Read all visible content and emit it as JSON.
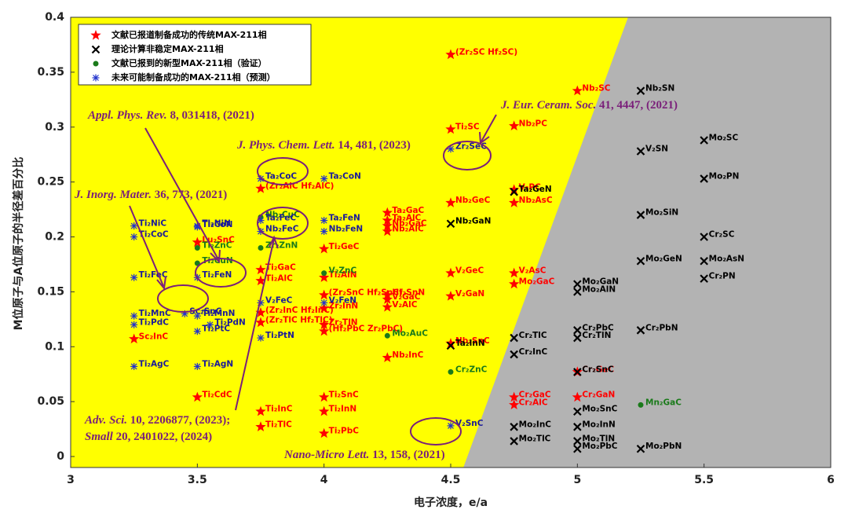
{
  "chart_data": {
    "type": "scatter",
    "xlabel": "电子浓度，e/a",
    "ylabel": "M位原子与A位原子的半径差百分比",
    "xlim": [
      3,
      6
    ],
    "xticks": [
      3,
      3.5,
      4,
      4.5,
      5,
      5.5,
      6
    ],
    "ylim": [
      -0.01,
      0.4
    ],
    "yticks": [
      0,
      0.05,
      0.1,
      0.15,
      0.2,
      0.25,
      0.3,
      0.35,
      0.4
    ],
    "stable_region_color": "#ffff00",
    "unstable_region_color": "#b3b3b3",
    "boundary": [
      [
        4.55,
        -0.01
      ],
      [
        5.2,
        0.4
      ]
    ],
    "series": [
      {
        "name": "文献已报道制备成功的传统MAX-211相",
        "marker": "star",
        "color": "#ff0000",
        "labels": [
          "(Zr₂SC Hf₂SC)",
          "Nb₂SC",
          "Ti₂SC",
          "Nb₂PC",
          "V₂PC",
          "Nb₂GeC",
          "Nb₂AsC",
          "Ta₂GaC",
          "Ta₂AlC",
          "Nb₂GaC",
          "Nb₂AlC",
          "Ti₂GeC",
          "(Zr₂AlC Hf₂AlC)",
          "Lu₂SnC",
          "Ti₂GaC",
          "Ti₂AlN",
          "V₂GeC",
          "V₂AsC",
          "Mo₂GaC",
          "Ti₂AlC",
          "(Zr₂SnC Hf₂SnC)",
          "Hf₂SnN",
          "V₂GaC",
          "V₂GaN",
          "V₂AlC",
          "Zr₂InN",
          "(Zr₂InC Hf₂InC)",
          "Zr₂TlN",
          "(Zr₂TlC Hf₂TlC)",
          "(Hf₂PbC Zr₂PbC)",
          "Nb₂SnC",
          "Sc₂InC",
          "Nb₂InC",
          "Cr₂GeC",
          "Ti₂CdC",
          "Ti₂SnC",
          "Cr₂GaC",
          "Cr₂GaN",
          "Cr₂AlC",
          "Ti₂InC",
          "Ti₂InN",
          "Ti₂TlC",
          "Ti₂PbC"
        ],
        "x": [
          4.5,
          5,
          4.5,
          4.75,
          4.75,
          4.5,
          4.75,
          4.25,
          4.25,
          4.25,
          4.25,
          4,
          3.75,
          3.5,
          3.75,
          4,
          4.5,
          4.75,
          4.75,
          3.75,
          4,
          4.25,
          4.25,
          4.5,
          4.25,
          4,
          3.75,
          4,
          3.75,
          4,
          4.5,
          3.25,
          4.25,
          5,
          3.5,
          4,
          4.75,
          5,
          4.75,
          3.75,
          4,
          3.75,
          4
        ],
        "values": [
          0.366,
          0.333,
          0.298,
          0.301,
          0.243,
          0.231,
          0.231,
          0.222,
          0.215,
          0.21,
          0.205,
          0.189,
          0.244,
          0.195,
          0.17,
          0.163,
          0.167,
          0.167,
          0.157,
          0.16,
          0.147,
          0.147,
          0.143,
          0.146,
          0.136,
          0.135,
          0.131,
          0.12,
          0.122,
          0.114,
          0.103,
          0.107,
          0.09,
          0.077,
          0.054,
          0.054,
          0.054,
          0.054,
          0.047,
          0.041,
          0.041,
          0.027,
          0.021
        ]
      },
      {
        "name": "理论计算非稳定MAX-211相",
        "marker": "cross",
        "color": "#000000",
        "labels": [
          "Nb₂SN",
          "Mo₂SC",
          "V₂SN",
          "Mo₂PN",
          "Ta₂GeN",
          "Mo₂SiN",
          "Nb₂GaN",
          "Cr₂SC",
          "Mo₂GeN",
          "Mo₂AsN",
          "Cr₂PN",
          "Mo₂GaN",
          "Mo₂AlN",
          "Cr₂PbC",
          "Cr₂PbN",
          "Cr₂TlC",
          "Cr₂TlN",
          "Ta₂InN",
          "Cr₂InC",
          "Cr₂SnC",
          "Mo₂SnC",
          "Mo₂InN",
          "Mo₂InC",
          "Mo₂TlN",
          "Mo₂TlC",
          "Mo₂PbC",
          "Mo₂PbN"
        ],
        "x": [
          5.25,
          5.5,
          5.25,
          5.5,
          4.75,
          5.25,
          4.5,
          5.5,
          5.25,
          5.5,
          5.5,
          5,
          5,
          5,
          5.25,
          4.75,
          5,
          4.5,
          4.75,
          5,
          5,
          5,
          4.75,
          5,
          4.75,
          5,
          5.25
        ],
        "values": [
          0.333,
          0.288,
          0.278,
          0.253,
          0.241,
          0.22,
          0.212,
          0.2,
          0.178,
          0.178,
          0.162,
          0.157,
          0.15,
          0.115,
          0.115,
          0.108,
          0.108,
          0.101,
          0.093,
          0.077,
          0.041,
          0.027,
          0.027,
          0.014,
          0.014,
          0.007,
          0.007
        ]
      },
      {
        "name": "文献已报到的新型MAX-211相（验证）",
        "marker": "dot",
        "color": "#1a7a1a",
        "labels": [
          "Nb₂CuC",
          "Ti₂ZnC",
          "Ti₂CuN",
          "Zr₂ZnN",
          "V₂ZnC",
          "Mo₂AuC",
          "Cr₂ZnC",
          "Mn₂GaC"
        ],
        "x": [
          3.75,
          3.5,
          3.5,
          3.75,
          4,
          4.25,
          4.5,
          5.25
        ],
        "values": [
          0.218,
          0.19,
          0.176,
          0.19,
          0.167,
          0.11,
          0.077,
          0.047
        ]
      },
      {
        "name": "未来可能制备成功的MAX-211相（预测）",
        "marker": "asterisk",
        "color": "#2233cc",
        "labels": [
          "Ta₂CoC",
          "Ta₂CoN",
          "Ta₂FeC",
          "Nb₂FeC",
          "Ta₂FeN",
          "Nb₂FeN",
          "Ti₂NiC",
          "Ti₂NiN",
          "Ti₂CoC",
          "Ti₂CoN",
          "Ti₂FeC",
          "Ti₂FeN",
          "Sc₂SnC",
          "Ti₂MnC",
          "Ti₂MnN",
          "Ti₂PdC",
          "Ti₂PtC",
          "Ti₂PdN",
          "Ti₂PtN",
          "V₂FeC",
          "V₂FeN",
          "Ti₂AgC",
          "Ti₂AgN",
          "V₂SnC",
          "Zr₂SeC"
        ],
        "x": [
          3.75,
          4,
          3.75,
          3.75,
          4,
          4,
          3.25,
          3.5,
          3.25,
          3.5,
          3.25,
          3.5,
          3.45,
          3.25,
          3.5,
          3.25,
          3.5,
          3.55,
          3.75,
          3.75,
          4,
          3.25,
          3.5,
          4.5,
          4.5
        ],
        "values": [
          0.253,
          0.253,
          0.215,
          0.205,
          0.215,
          0.205,
          0.21,
          0.21,
          0.2,
          0.209,
          0.163,
          0.163,
          0.13,
          0.128,
          0.128,
          0.12,
          0.114,
          0.12,
          0.108,
          0.14,
          0.14,
          0.082,
          0.082,
          0.028,
          0.28
        ]
      }
    ],
    "annotations": [
      {
        "journal": "Appl. Phys. Rev.",
        "ref": " 8, 031418, (2021)"
      },
      {
        "journal": "J. Phys. Chem. Lett.",
        "ref": " 14, 481, (2023)"
      },
      {
        "journal": "J. Inorg. Mater.",
        "ref": " 36, 773, (2021)"
      },
      {
        "journal": "J. Eur. Ceram. Soc.",
        "ref": " 41, 4447, (2021)"
      },
      {
        "journal": "Adv. Sci.",
        "ref": " 10, 2206877, (2023);"
      },
      {
        "journal": "Small",
        "ref": " 20, 2401022, (2024)"
      },
      {
        "journal": "Nano-Micro Lett.",
        "ref": " 13, 158, (2021)"
      }
    ]
  }
}
